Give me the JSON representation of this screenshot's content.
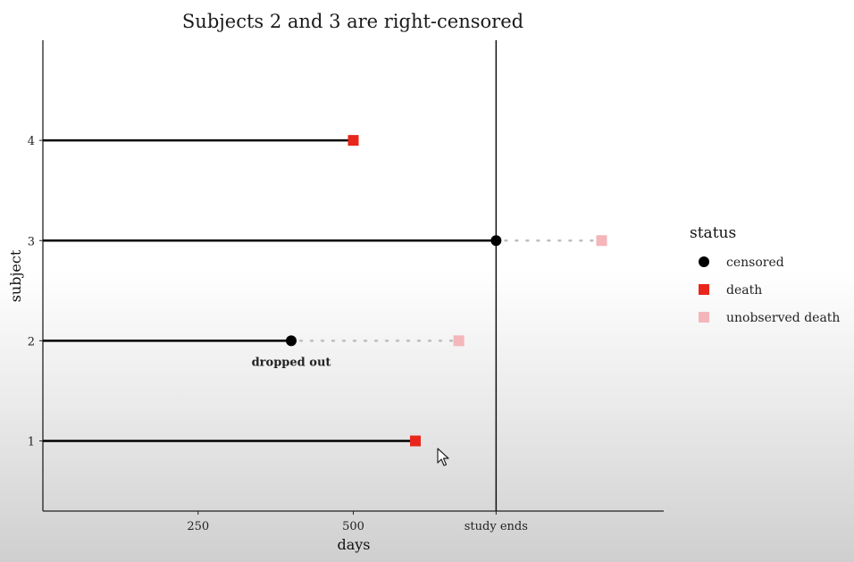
{
  "chart_data": {
    "type": "scatter",
    "title": "Subjects 2 and 3 are right-censored",
    "xlabel": "days",
    "ylabel": "subject",
    "xlim": [
      0,
      1000
    ],
    "ylim": [
      0.3,
      5
    ],
    "x_ticks": [
      {
        "value": 250,
        "label": "250"
      },
      {
        "value": 500,
        "label": "500"
      },
      {
        "value": 730,
        "label": "study ends"
      }
    ],
    "y_ticks": [
      1,
      2,
      3,
      4
    ],
    "study_end": 730,
    "subjects": [
      {
        "subject": 1,
        "end": 600,
        "status": "death"
      },
      {
        "subject": 2,
        "end": 400,
        "status": "censored",
        "unobserved_death": 670,
        "annotation": "dropped out"
      },
      {
        "subject": 3,
        "end": 730,
        "status": "censored",
        "unobserved_death": 900
      },
      {
        "subject": 4,
        "end": 500,
        "status": "death"
      }
    ],
    "legend": {
      "title": "status",
      "placement": "right",
      "entries": [
        {
          "label": "censored",
          "shape": "circle",
          "color": "#000000"
        },
        {
          "label": "death",
          "shape": "square",
          "color": "#e8261b"
        },
        {
          "label": "unobserved death",
          "shape": "square",
          "color": "#f4b6b9"
        }
      ]
    },
    "grid": false,
    "colors": {
      "line": "#000000",
      "censored": "#000000",
      "death": "#e8261b",
      "unobserved_death": "#f4b6b9",
      "dotted": "#bdbdbd"
    }
  },
  "cursor": {
    "icon": "mouse-pointer-icon"
  }
}
